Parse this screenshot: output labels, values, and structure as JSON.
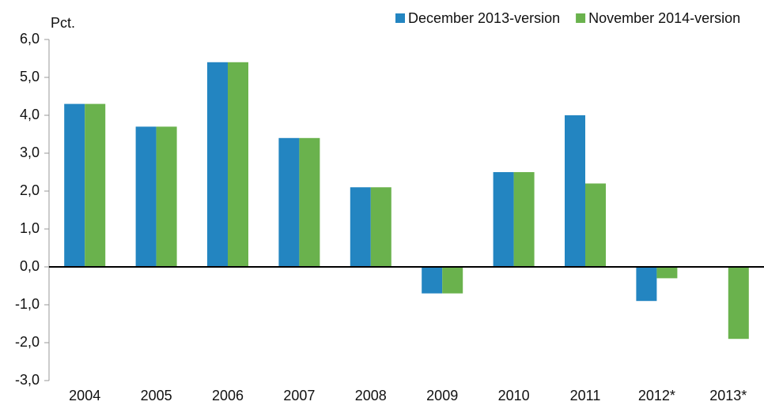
{
  "chart_data": {
    "type": "bar",
    "y_label": "Pct.",
    "categories": [
      "2004",
      "2005",
      "2006",
      "2007",
      "2008",
      "2009",
      "2010",
      "2011",
      "2012*",
      "2013*"
    ],
    "series": [
      {
        "name": "December 2013-version",
        "color": "#2385c1",
        "values": [
          4.3,
          3.7,
          5.4,
          3.4,
          2.1,
          -0.7,
          2.5,
          4.0,
          -0.9,
          null
        ]
      },
      {
        "name": "November 2014-version",
        "color": "#6ab24d",
        "values": [
          4.3,
          3.7,
          5.4,
          3.4,
          2.1,
          -0.7,
          2.5,
          2.2,
          -0.3,
          -1.9
        ]
      }
    ],
    "ylim": [
      -3,
      6
    ],
    "yticks": [
      {
        "value": -3,
        "label": "-3,0"
      },
      {
        "value": -2,
        "label": "-2,0"
      },
      {
        "value": -1,
        "label": "-1,0"
      },
      {
        "value": 0,
        "label": "0,0"
      },
      {
        "value": 1,
        "label": "1,0"
      },
      {
        "value": 2,
        "label": "2,0"
      },
      {
        "value": 3,
        "label": "3,0"
      },
      {
        "value": 4,
        "label": "4,0"
      },
      {
        "value": 5,
        "label": "5,0"
      },
      {
        "value": 6,
        "label": "6,0"
      }
    ],
    "legend": "top-right"
  }
}
